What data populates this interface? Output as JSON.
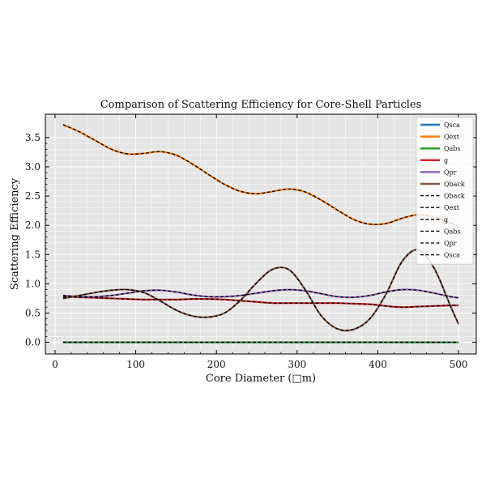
{
  "chart_data": {
    "type": "line",
    "title": "Comparison of Scattering Efficiency for Core-Shell Particles",
    "xlabel": "Core Diameter (□m)",
    "ylabel": "Scattering Efficiency",
    "xlim": [
      -12,
      522
    ],
    "ylim": [
      -0.2,
      3.9
    ],
    "xticks": [
      0,
      100,
      200,
      300,
      400,
      500
    ],
    "yticks": [
      0.0,
      0.5,
      1.0,
      1.5,
      2.0,
      2.5,
      3.0,
      3.5
    ],
    "grid": true,
    "legend_position": "top-right",
    "x": [
      10,
      30,
      50,
      70,
      90,
      110,
      130,
      150,
      170,
      190,
      210,
      230,
      250,
      270,
      290,
      310,
      330,
      350,
      370,
      390,
      410,
      430,
      450,
      470,
      490,
      500
    ],
    "series": [
      {
        "name": "Qsca",
        "color": "#1f77b4",
        "style": "solid",
        "values": [
          0.0,
          0.0,
          0.0,
          0.0,
          0.0,
          0.0,
          0.0,
          0.0,
          0.0,
          0.0,
          0.0,
          0.0,
          0.0,
          0.0,
          0.0,
          0.0,
          0.0,
          0.0,
          0.0,
          0.0,
          0.0,
          0.0,
          0.0,
          0.0,
          0.0,
          0.0
        ]
      },
      {
        "name": "Qext",
        "color": "#ff7f0e",
        "style": "solid",
        "values": [
          3.72,
          3.6,
          3.45,
          3.3,
          3.22,
          3.23,
          3.26,
          3.2,
          3.05,
          2.87,
          2.7,
          2.58,
          2.54,
          2.58,
          2.62,
          2.57,
          2.43,
          2.26,
          2.1,
          2.02,
          2.03,
          2.12,
          2.18,
          2.14,
          2.04,
          1.97
        ]
      },
      {
        "name": "Qabs",
        "color": "#2ca02c",
        "style": "solid",
        "values": [
          0.0,
          0.0,
          0.0,
          0.0,
          0.0,
          0.0,
          0.0,
          0.0,
          0.0,
          0.0,
          0.0,
          0.0,
          0.0,
          0.0,
          0.0,
          0.0,
          0.0,
          0.0,
          0.0,
          0.0,
          0.0,
          0.0,
          0.0,
          0.0,
          0.0,
          0.0
        ]
      },
      {
        "name": "g",
        "color": "#d62728",
        "style": "solid",
        "values": [
          0.78,
          0.77,
          0.76,
          0.75,
          0.74,
          0.73,
          0.73,
          0.73,
          0.74,
          0.74,
          0.73,
          0.71,
          0.69,
          0.67,
          0.67,
          0.67,
          0.67,
          0.67,
          0.66,
          0.65,
          0.62,
          0.6,
          0.61,
          0.62,
          0.63,
          0.63
        ]
      },
      {
        "name": "Qpr",
        "color": "#9467bd",
        "style": "solid",
        "values": [
          0.8,
          0.78,
          0.78,
          0.8,
          0.84,
          0.88,
          0.89,
          0.86,
          0.81,
          0.78,
          0.78,
          0.8,
          0.84,
          0.88,
          0.9,
          0.88,
          0.83,
          0.78,
          0.77,
          0.8,
          0.86,
          0.9,
          0.89,
          0.84,
          0.78,
          0.76
        ]
      },
      {
        "name": "Qback",
        "color": "#8c564b",
        "style": "solid",
        "values": [
          0.75,
          0.8,
          0.85,
          0.89,
          0.9,
          0.85,
          0.71,
          0.55,
          0.45,
          0.43,
          0.5,
          0.72,
          1.02,
          1.25,
          1.24,
          0.9,
          0.45,
          0.23,
          0.22,
          0.4,
          0.82,
          1.38,
          1.58,
          1.26,
          0.62,
          0.31
        ]
      },
      {
        "name": "Qback",
        "color": "#000000",
        "style": "dashed",
        "ref": "Qback"
      },
      {
        "name": "Qext",
        "color": "#000000",
        "style": "dashed",
        "ref": "Qext"
      },
      {
        "name": "g",
        "color": "#000000",
        "style": "dashed",
        "ref": "g"
      },
      {
        "name": "Qabs",
        "color": "#000000",
        "style": "dashed",
        "ref": "Qabs"
      },
      {
        "name": "Qpr",
        "color": "#000000",
        "style": "dashed",
        "ref": "Qpr"
      },
      {
        "name": "Qsca",
        "color": "#000000",
        "style": "dashed",
        "ref": "Qsca"
      }
    ]
  }
}
